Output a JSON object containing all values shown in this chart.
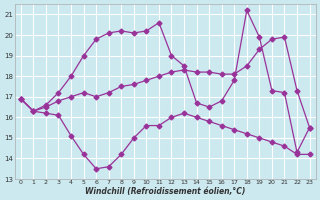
{
  "xlabel": "Windchill (Refroidissement éolien,°C)",
  "background_color": "#cce9f0",
  "grid_color": "#ffffff",
  "line_color": "#993399",
  "marker": "D",
  "markersize": 2.5,
  "linewidth": 0.9,
  "xlim": [
    -0.5,
    23.5
  ],
  "ylim": [
    13,
    21.5
  ],
  "yticks": [
    13,
    14,
    15,
    16,
    17,
    18,
    19,
    20,
    21
  ],
  "xticks": [
    0,
    1,
    2,
    3,
    4,
    5,
    6,
    7,
    8,
    9,
    10,
    11,
    12,
    13,
    14,
    15,
    16,
    17,
    18,
    19,
    20,
    21,
    22,
    23
  ],
  "lines": [
    {
      "x": [
        0,
        1,
        2,
        3,
        4,
        5,
        6,
        7,
        8,
        9,
        10,
        11,
        12,
        13,
        14,
        15,
        16,
        17,
        18,
        19,
        20,
        21,
        22,
        23
      ],
      "y": [
        16.9,
        16.3,
        16.2,
        16.1,
        15.1,
        14.2,
        13.5,
        13.6,
        14.2,
        15.0,
        15.6,
        15.6,
        16.0,
        16.2,
        16.0,
        15.8,
        15.6,
        15.4,
        15.2,
        15.0,
        14.8,
        14.6,
        14.2,
        14.2
      ]
    },
    {
      "x": [
        0,
        1,
        2,
        3,
        4,
        5,
        6,
        7,
        8,
        9,
        10,
        11,
        12,
        13,
        14,
        15,
        16,
        17,
        18,
        19,
        20,
        21,
        22,
        23
      ],
      "y": [
        16.9,
        16.3,
        16.5,
        16.8,
        17.0,
        17.2,
        17.0,
        17.2,
        17.5,
        17.6,
        17.8,
        18.0,
        18.2,
        18.3,
        18.2,
        18.2,
        18.1,
        18.1,
        18.5,
        19.3,
        19.8,
        19.9,
        17.3,
        15.5
      ]
    },
    {
      "x": [
        0,
        1,
        2,
        3,
        4,
        5,
        6,
        7,
        8,
        9,
        10,
        11,
        12,
        13,
        14,
        15,
        16,
        17,
        18,
        19,
        20,
        21,
        22,
        23
      ],
      "y": [
        16.9,
        16.3,
        16.6,
        17.2,
        18.0,
        19.0,
        19.8,
        20.1,
        20.2,
        20.1,
        20.2,
        20.6,
        19.0,
        18.5,
        16.7,
        16.5,
        16.8,
        17.8,
        21.2,
        19.9,
        17.3,
        17.2,
        14.3,
        15.5
      ]
    }
  ]
}
